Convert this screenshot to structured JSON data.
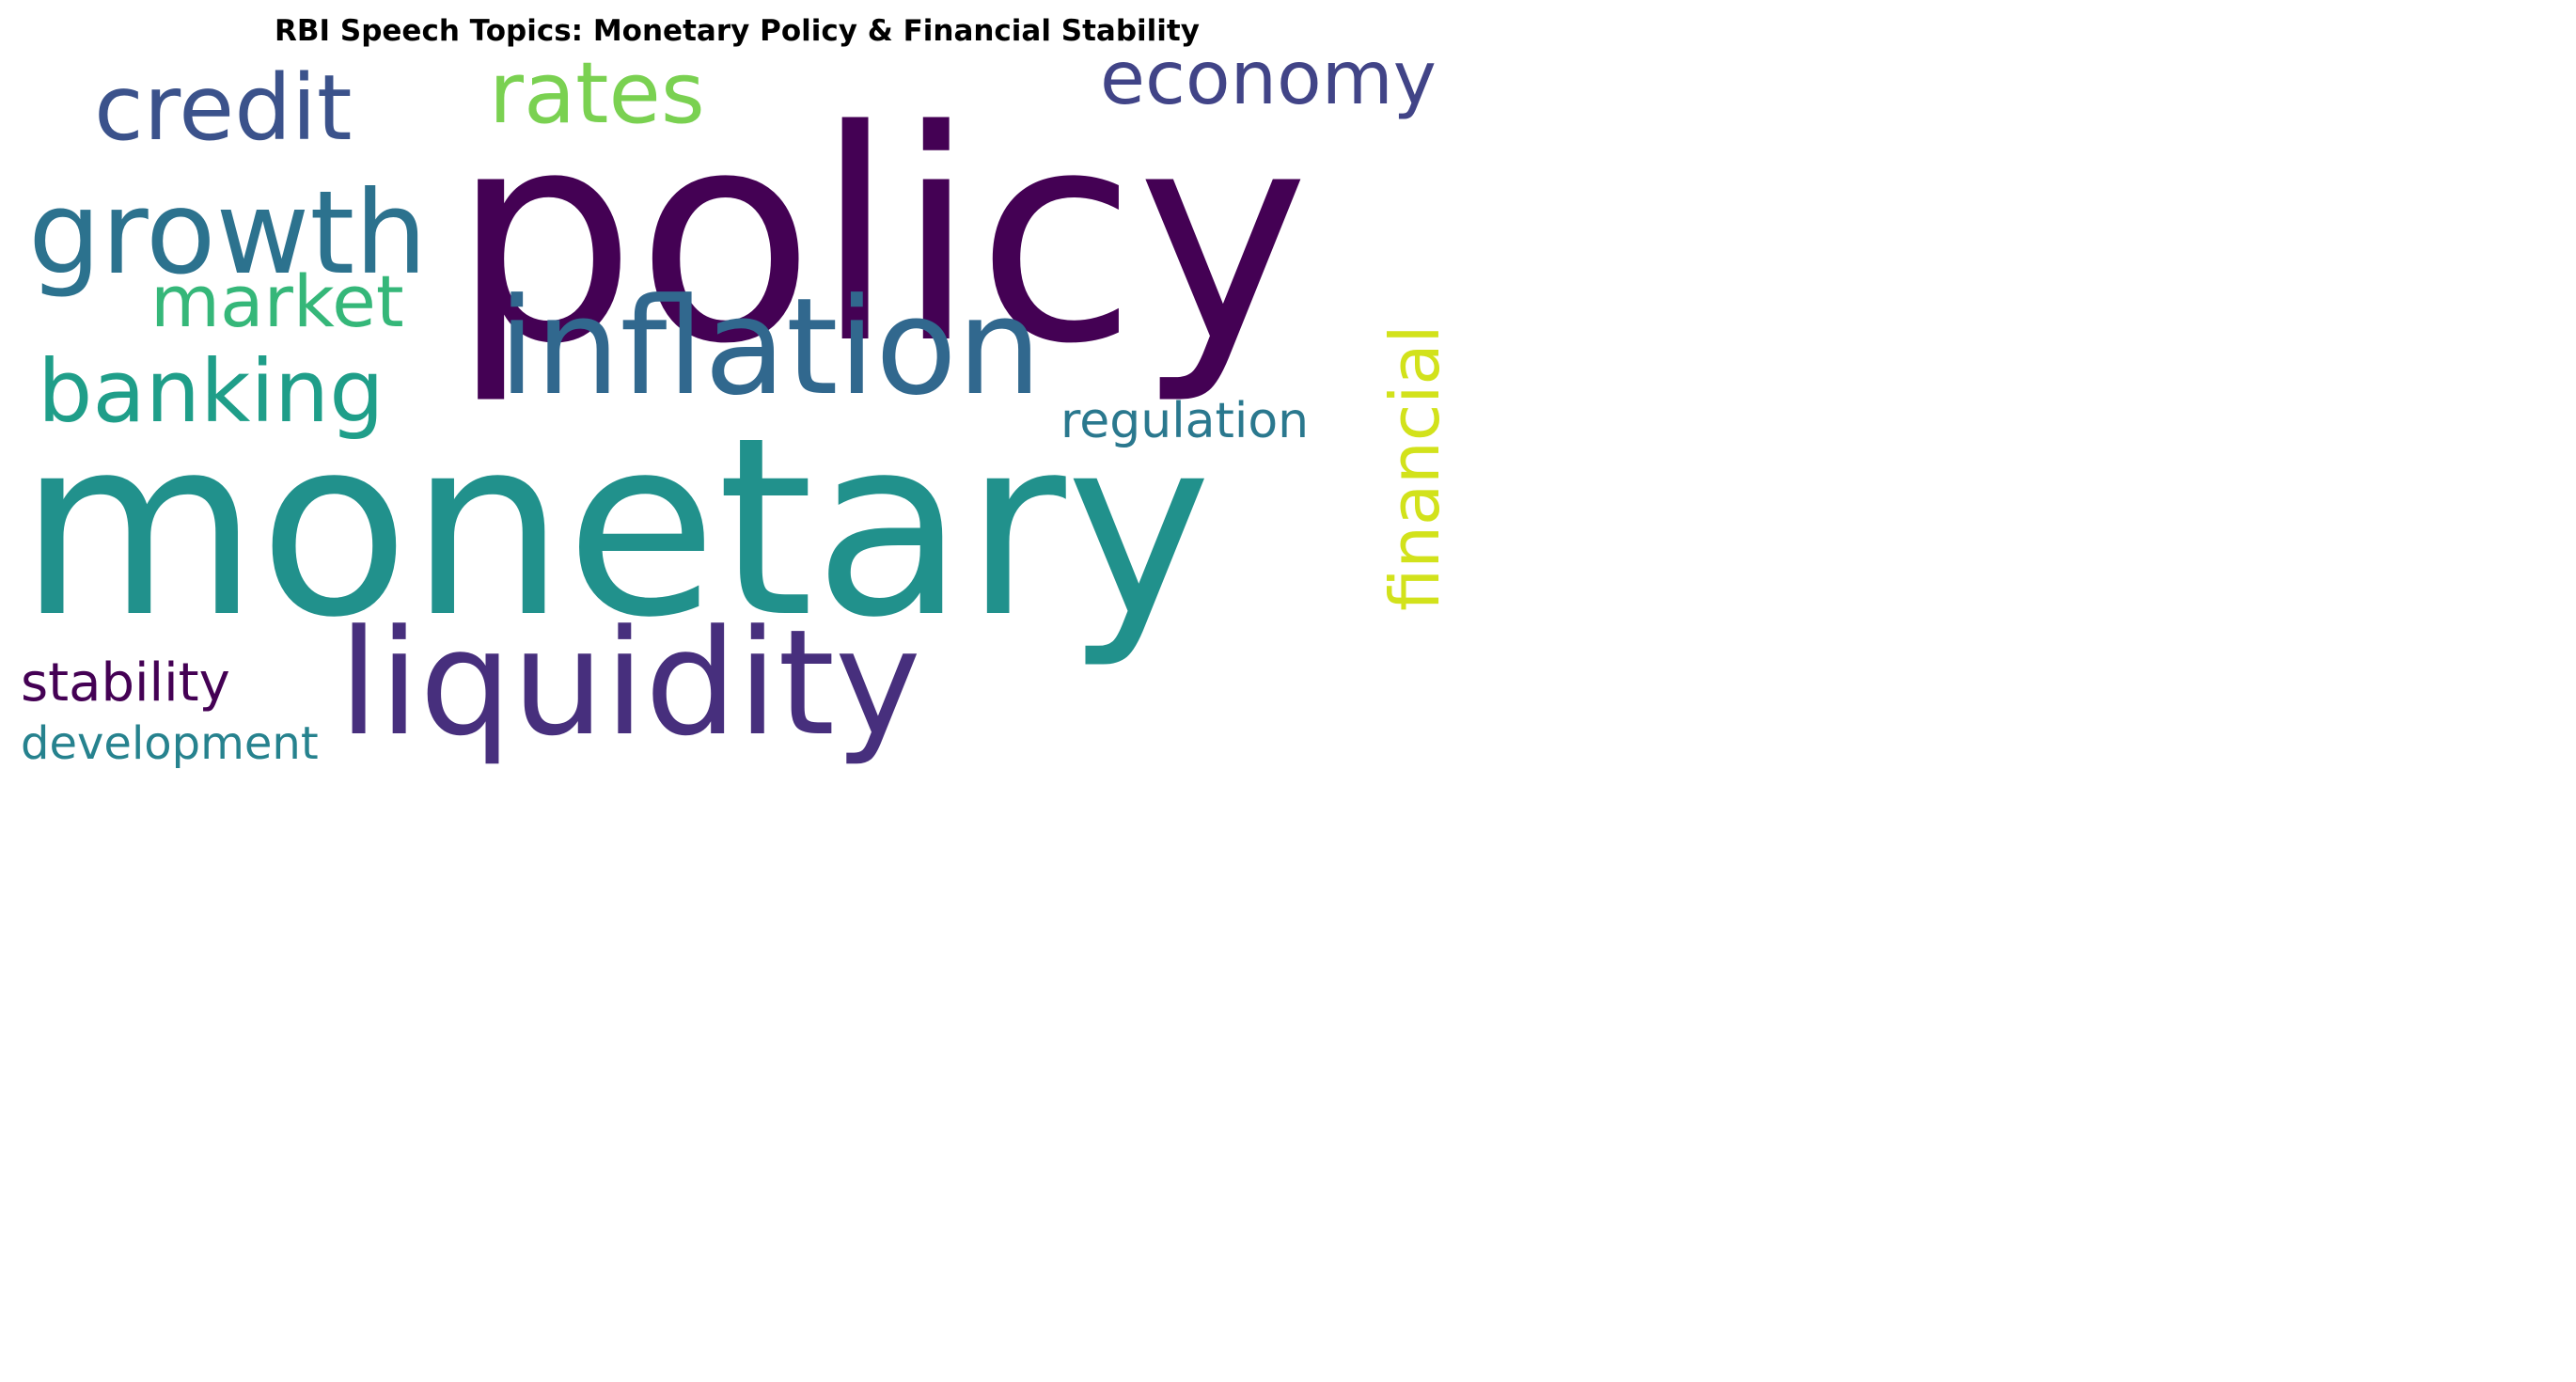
{
  "title": "RBI Speech Topics: Monetary Policy & Financial Stability",
  "words": [
    {
      "text": "policy",
      "color": "#440154"
    },
    {
      "text": "monetary",
      "color": "#21918c"
    },
    {
      "text": "inflation",
      "color": "#31688e"
    },
    {
      "text": "liquidity",
      "color": "#472f7d"
    },
    {
      "text": "growth",
      "color": "#2c728e"
    },
    {
      "text": "credit",
      "color": "#3b528b"
    },
    {
      "text": "rates",
      "color": "#7ad151"
    },
    {
      "text": "economy",
      "color": "#414487"
    },
    {
      "text": "banking",
      "color": "#1f9e89"
    },
    {
      "text": "market",
      "color": "#35b779"
    },
    {
      "text": "financial",
      "color": "#d2e21b"
    },
    {
      "text": "regulation",
      "color": "#2a788e"
    },
    {
      "text": "stability",
      "color": "#440154"
    },
    {
      "text": "development",
      "color": "#26828e"
    }
  ]
}
